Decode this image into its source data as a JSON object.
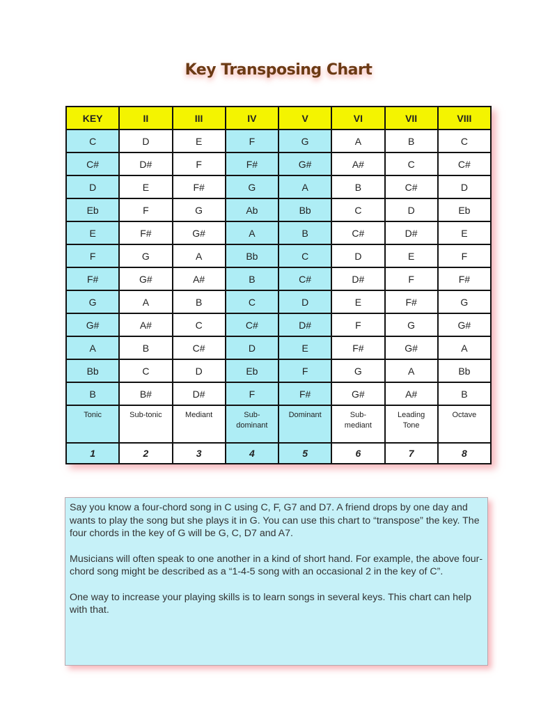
{
  "title": "Key Transposing Chart",
  "colors": {
    "header": "#f4f400",
    "highlight": "#aeedf5",
    "title": "#6b3a14"
  },
  "table": {
    "headers": [
      "KEY",
      "II",
      "III",
      "IV",
      "V",
      "VI",
      "VII",
      "VIII"
    ],
    "highlight_columns": [
      0,
      3,
      4
    ],
    "rows": [
      [
        "C",
        "D",
        "E",
        "F",
        "G",
        "A",
        "B",
        "C"
      ],
      [
        "C#",
        "D#",
        "F",
        "F#",
        "G#",
        "A#",
        "C",
        "C#"
      ],
      [
        "D",
        "E",
        "F#",
        "G",
        "A",
        "B",
        "C#",
        "D"
      ],
      [
        "Eb",
        "F",
        "G",
        "Ab",
        "Bb",
        "C",
        "D",
        "Eb"
      ],
      [
        "E",
        "F#",
        "G#",
        "A",
        "B",
        "C#",
        "D#",
        "E"
      ],
      [
        "F",
        "G",
        "A",
        "Bb",
        "C",
        "D",
        "E",
        "F"
      ],
      [
        "F#",
        "G#",
        "A#",
        "B",
        "C#",
        "D#",
        "F",
        "F#"
      ],
      [
        "G",
        "A",
        "B",
        "C",
        "D",
        "E",
        "F#",
        "G"
      ],
      [
        "G#",
        "A#",
        "C",
        "C#",
        "D#",
        "F",
        "G",
        "G#"
      ],
      [
        "A",
        "B",
        "C#",
        "D",
        "E",
        "F#",
        "G#",
        "A"
      ],
      [
        "Bb",
        "C",
        "D",
        "Eb",
        "F",
        "G",
        "A",
        "Bb"
      ],
      [
        "B",
        "B#",
        "D#",
        "F",
        "F#",
        "G#",
        "A#",
        "B"
      ]
    ],
    "names": [
      "Tonic",
      "Sub-tonic",
      "Mediant",
      "Sub-\ndominant",
      "Dominant",
      "Sub-\nmediant",
      "Leading\nTone",
      "Octave"
    ],
    "numbers": [
      "1",
      "2",
      "3",
      "4",
      "5",
      "6",
      "7",
      "8"
    ]
  },
  "note": {
    "paragraphs": [
      "Say you know a four-chord song in C using C, F, G7 and D7. A friend drops by one day and wants to play the song but she plays it in G. You can use this chart to “transpose” the key. The four chords in the key of G will be G, C, D7 and A7.",
      "Musicians will often speak to one another in a kind of short hand. For example, the above four-chord song might be described as a “1-4-5 song with an occasional 2 in the key of C”.",
      "One way to increase your playing skills is to learn songs in several keys. This chart can help with that."
    ]
  }
}
